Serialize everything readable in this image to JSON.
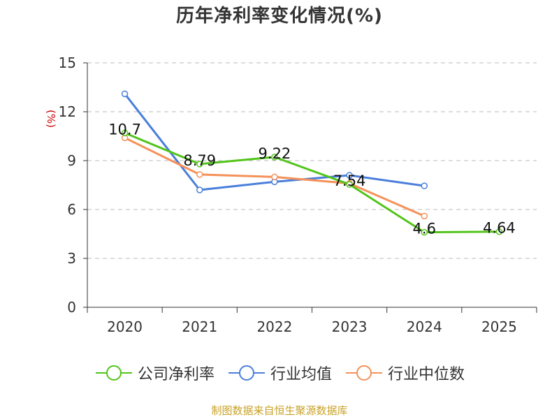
{
  "chart_data": {
    "type": "line",
    "title": "历年净利率变化情况(%)",
    "ylabel": "(%)",
    "xlabel": "",
    "categories": [
      "2020",
      "2021",
      "2022",
      "2023",
      "2024",
      "2025"
    ],
    "ylim": [
      0,
      15
    ],
    "yticks": [
      0,
      3,
      6,
      9,
      12,
      15
    ],
    "grid": true,
    "legend_position": "bottom",
    "series": [
      {
        "name": "公司净利率",
        "color": "#52c41a",
        "values": [
          10.7,
          8.79,
          9.22,
          7.54,
          4.6,
          4.64
        ],
        "labels": [
          "10.7",
          "8.79",
          "9.22",
          "7.54",
          "4.6",
          "4.64"
        ]
      },
      {
        "name": "行业均值",
        "color": "#4a7fdb",
        "values": [
          13.1,
          7.2,
          7.7,
          8.1,
          7.45,
          null
        ]
      },
      {
        "name": "行业中位数",
        "color": "#f5915a",
        "values": [
          10.4,
          8.15,
          8.0,
          7.6,
          5.6,
          null
        ]
      }
    ]
  },
  "source_note": "制图数据来自恒生聚源数据库",
  "colors": {
    "axis": "#333333",
    "grid": "#bbbbbb",
    "ylabel": "#cc0000",
    "source": "#c9a227"
  }
}
